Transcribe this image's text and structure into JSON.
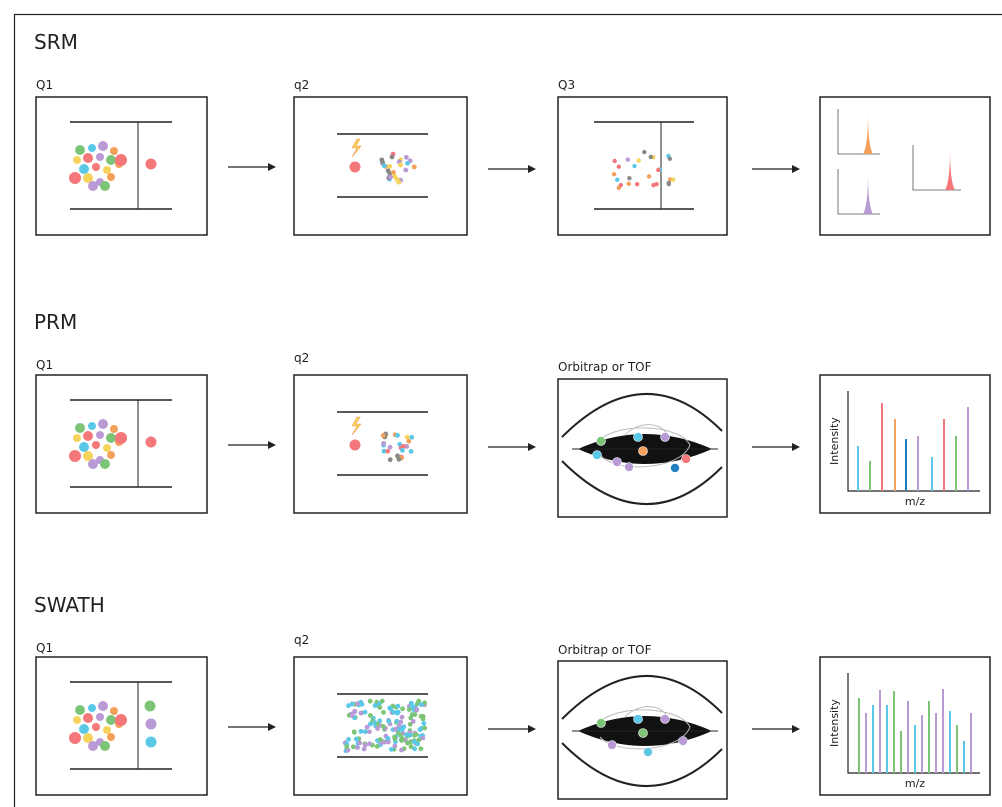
{
  "rows": [
    {
      "title": "SRM",
      "stages": [
        "Q1",
        "q2",
        "Q3"
      ]
    },
    {
      "title": "PRM",
      "stages": [
        "Q1",
        "q2",
        "Orbitrap or TOF"
      ],
      "spectrum": {
        "y_label": "Intensity",
        "x_label": "m/z"
      }
    },
    {
      "title": "SWATH",
      "stages": [
        "Q1",
        "q2",
        "Orbitrap or TOF"
      ],
      "spectrum": {
        "y_label": "Intensity",
        "x_label": "m/z"
      }
    }
  ]
}
